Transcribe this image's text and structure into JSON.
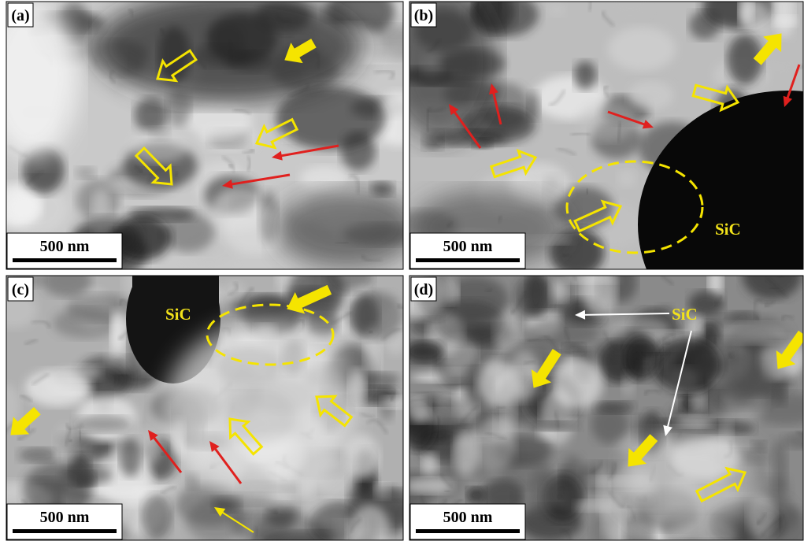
{
  "panels": [
    {
      "label": "(a)",
      "scale_bar": "500 nm"
    },
    {
      "label": "(b)",
      "scale_bar": "500 nm",
      "annotation": "SiC"
    },
    {
      "label": "(c)",
      "scale_bar": "500 nm",
      "annotation": "SiC"
    },
    {
      "label": "(d)",
      "scale_bar": "500 nm",
      "annotation": "SiC"
    }
  ]
}
